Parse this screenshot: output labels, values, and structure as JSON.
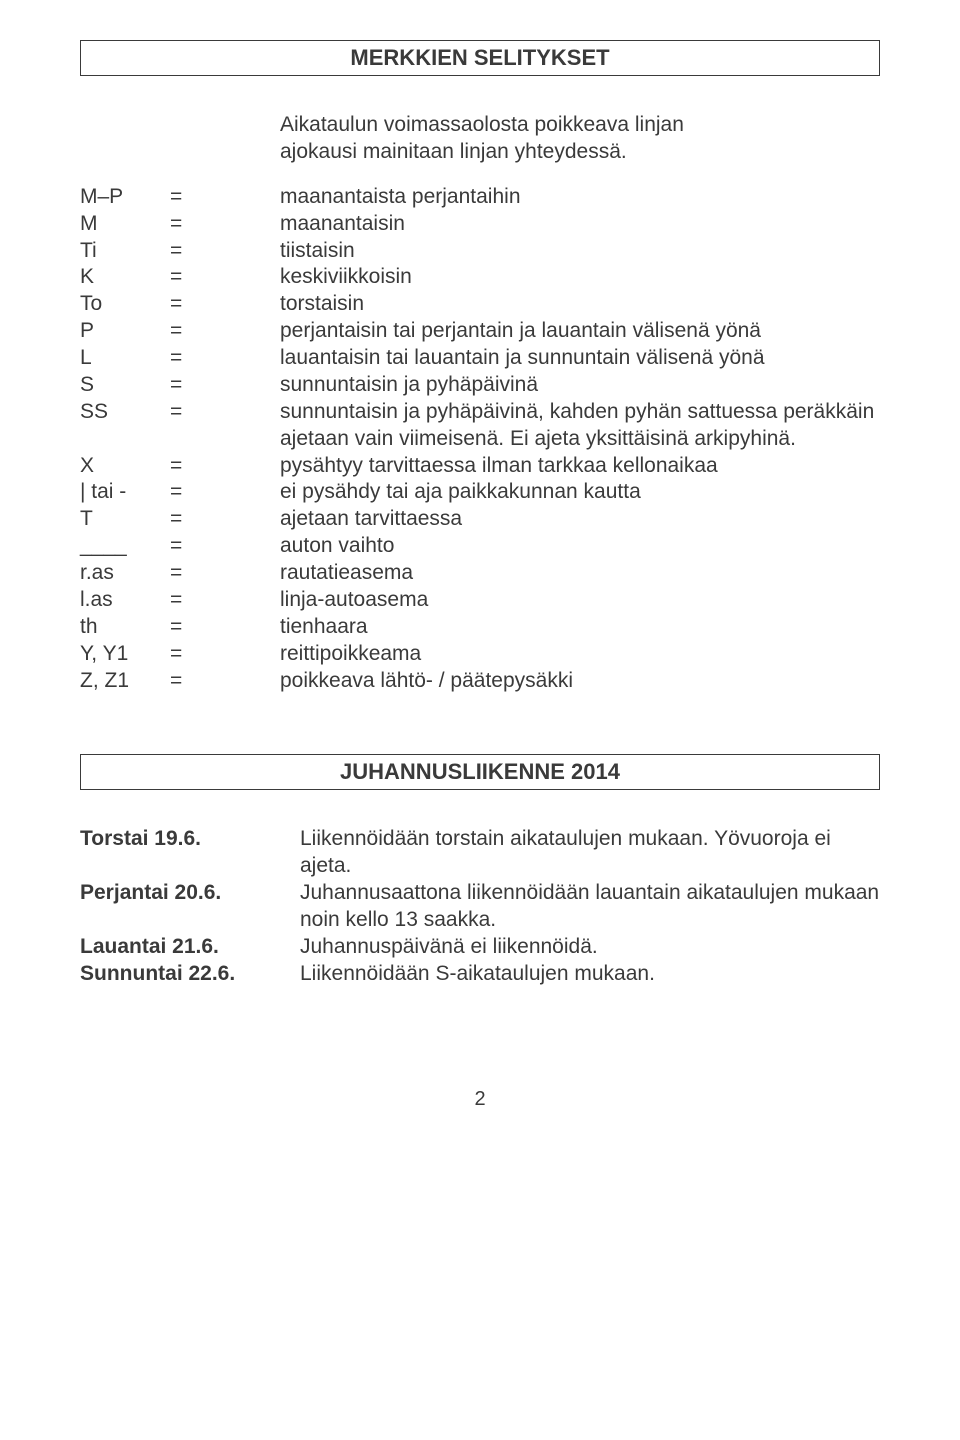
{
  "title_box": "MERKKIEN SELITYKSET",
  "intro_line1": "Aikataulun voimassaolosta poikkeava linjan",
  "intro_line2": "ajokausi mainitaan linjan yhteydessä.",
  "legend": [
    {
      "key": "M–P",
      "desc": "maanantaista perjantaihin"
    },
    {
      "key": "M",
      "desc": "maanantaisin"
    },
    {
      "key": "Ti",
      "desc": "tiistaisin"
    },
    {
      "key": "K",
      "desc": "keskiviikkoisin"
    },
    {
      "key": "To",
      "desc": "torstaisin"
    },
    {
      "key": "P",
      "desc": "perjantaisin tai perjantain ja lauantain välisenä yönä"
    },
    {
      "key": "L",
      "desc": "lauantaisin tai lauantain ja sunnuntain välisenä yönä"
    },
    {
      "key": "S",
      "desc": "sunnuntaisin ja pyhäpäivinä"
    },
    {
      "key": "SS",
      "desc": "sunnuntaisin ja pyhäpäivinä, kahden pyhän sattuessa peräkkäin ajetaan vain viimeisenä. Ei ajeta yksittäisinä arkipyhinä."
    },
    {
      "key": "X",
      "desc": "pysähtyy tarvittaessa ilman tarkkaa kellonaikaa"
    },
    {
      "key": "| tai -",
      "desc": "ei pysähdy tai aja paikkakunnan kautta"
    },
    {
      "key": "T",
      "desc": "ajetaan tarvittaessa"
    },
    {
      "key": "____",
      "desc": "auton vaihto"
    },
    {
      "key": "r.as",
      "desc": "rautatieasema"
    },
    {
      "key": "l.as",
      "desc": "linja-autoasema"
    },
    {
      "key": "th",
      "desc": "tienhaara"
    },
    {
      "key": "Y, Y1",
      "desc": "reittipoikkeama"
    },
    {
      "key": "Z, Z1",
      "desc": "poikkeava lähtö- / päätepysäkki"
    }
  ],
  "section2_title": "JUHANNUSLIIKENNE 2014",
  "schedule": [
    {
      "key": "Torstai 19.6.",
      "desc": "Liikennöidään torstain aikataulujen mukaan. Yövuoroja ei ajeta."
    },
    {
      "key": "Perjantai 20.6.",
      "desc": "Juhannusaattona liikennöidään lauantain aikataulujen mukaan noin kello 13 saakka."
    },
    {
      "key": "Lauantai 21.6.",
      "desc": "Juhannuspäivänä ei liikennöidä."
    },
    {
      "key": "Sunnuntai 22.6.",
      "desc": "Liikennöidään S-aikataulujen mukaan."
    }
  ],
  "eq": "=",
  "page_number": "2"
}
